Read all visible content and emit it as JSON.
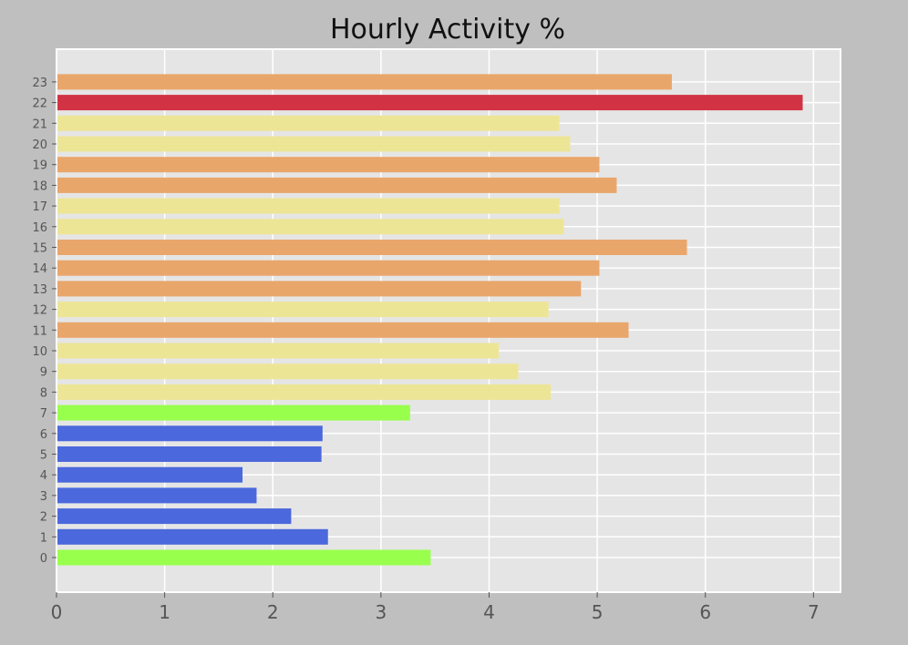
{
  "chart_data": {
    "type": "bar",
    "orientation": "horizontal",
    "title": "Hourly Activity %",
    "xlabel": "",
    "ylabel": "",
    "xlim": [
      0,
      7.25
    ],
    "xticks": [
      0,
      1,
      2,
      3,
      4,
      5,
      6,
      7
    ],
    "grid": true,
    "legend": "none",
    "categories": [
      "0",
      "1",
      "2",
      "3",
      "4",
      "5",
      "6",
      "7",
      "8",
      "9",
      "10",
      "11",
      "12",
      "13",
      "14",
      "15",
      "16",
      "17",
      "18",
      "19",
      "20",
      "21",
      "22",
      "23"
    ],
    "values": [
      3.46,
      2.51,
      2.17,
      1.85,
      1.72,
      2.45,
      2.46,
      3.27,
      4.57,
      4.27,
      4.09,
      5.29,
      4.55,
      4.85,
      5.02,
      5.83,
      4.69,
      4.65,
      5.18,
      5.02,
      4.75,
      4.65,
      6.9,
      5.69
    ],
    "colors": [
      "#99ff4d",
      "#4b68dc",
      "#4b68dc",
      "#4b68dc",
      "#4b68dc",
      "#4b68dc",
      "#4b68dc",
      "#99ff4d",
      "#ede596",
      "#ede596",
      "#ede596",
      "#e9a66b",
      "#ede596",
      "#e9a66b",
      "#e9a66b",
      "#e9a66b",
      "#ede596",
      "#ede596",
      "#e9a66b",
      "#e9a66b",
      "#ede596",
      "#ede596",
      "#d13344",
      "#e9a66b"
    ],
    "style": {
      "figure_background": "#bfbfbf",
      "axes_background": "#e5e5e5",
      "grid_color": "#ffffff",
      "tick_label_color": "#555555"
    }
  }
}
